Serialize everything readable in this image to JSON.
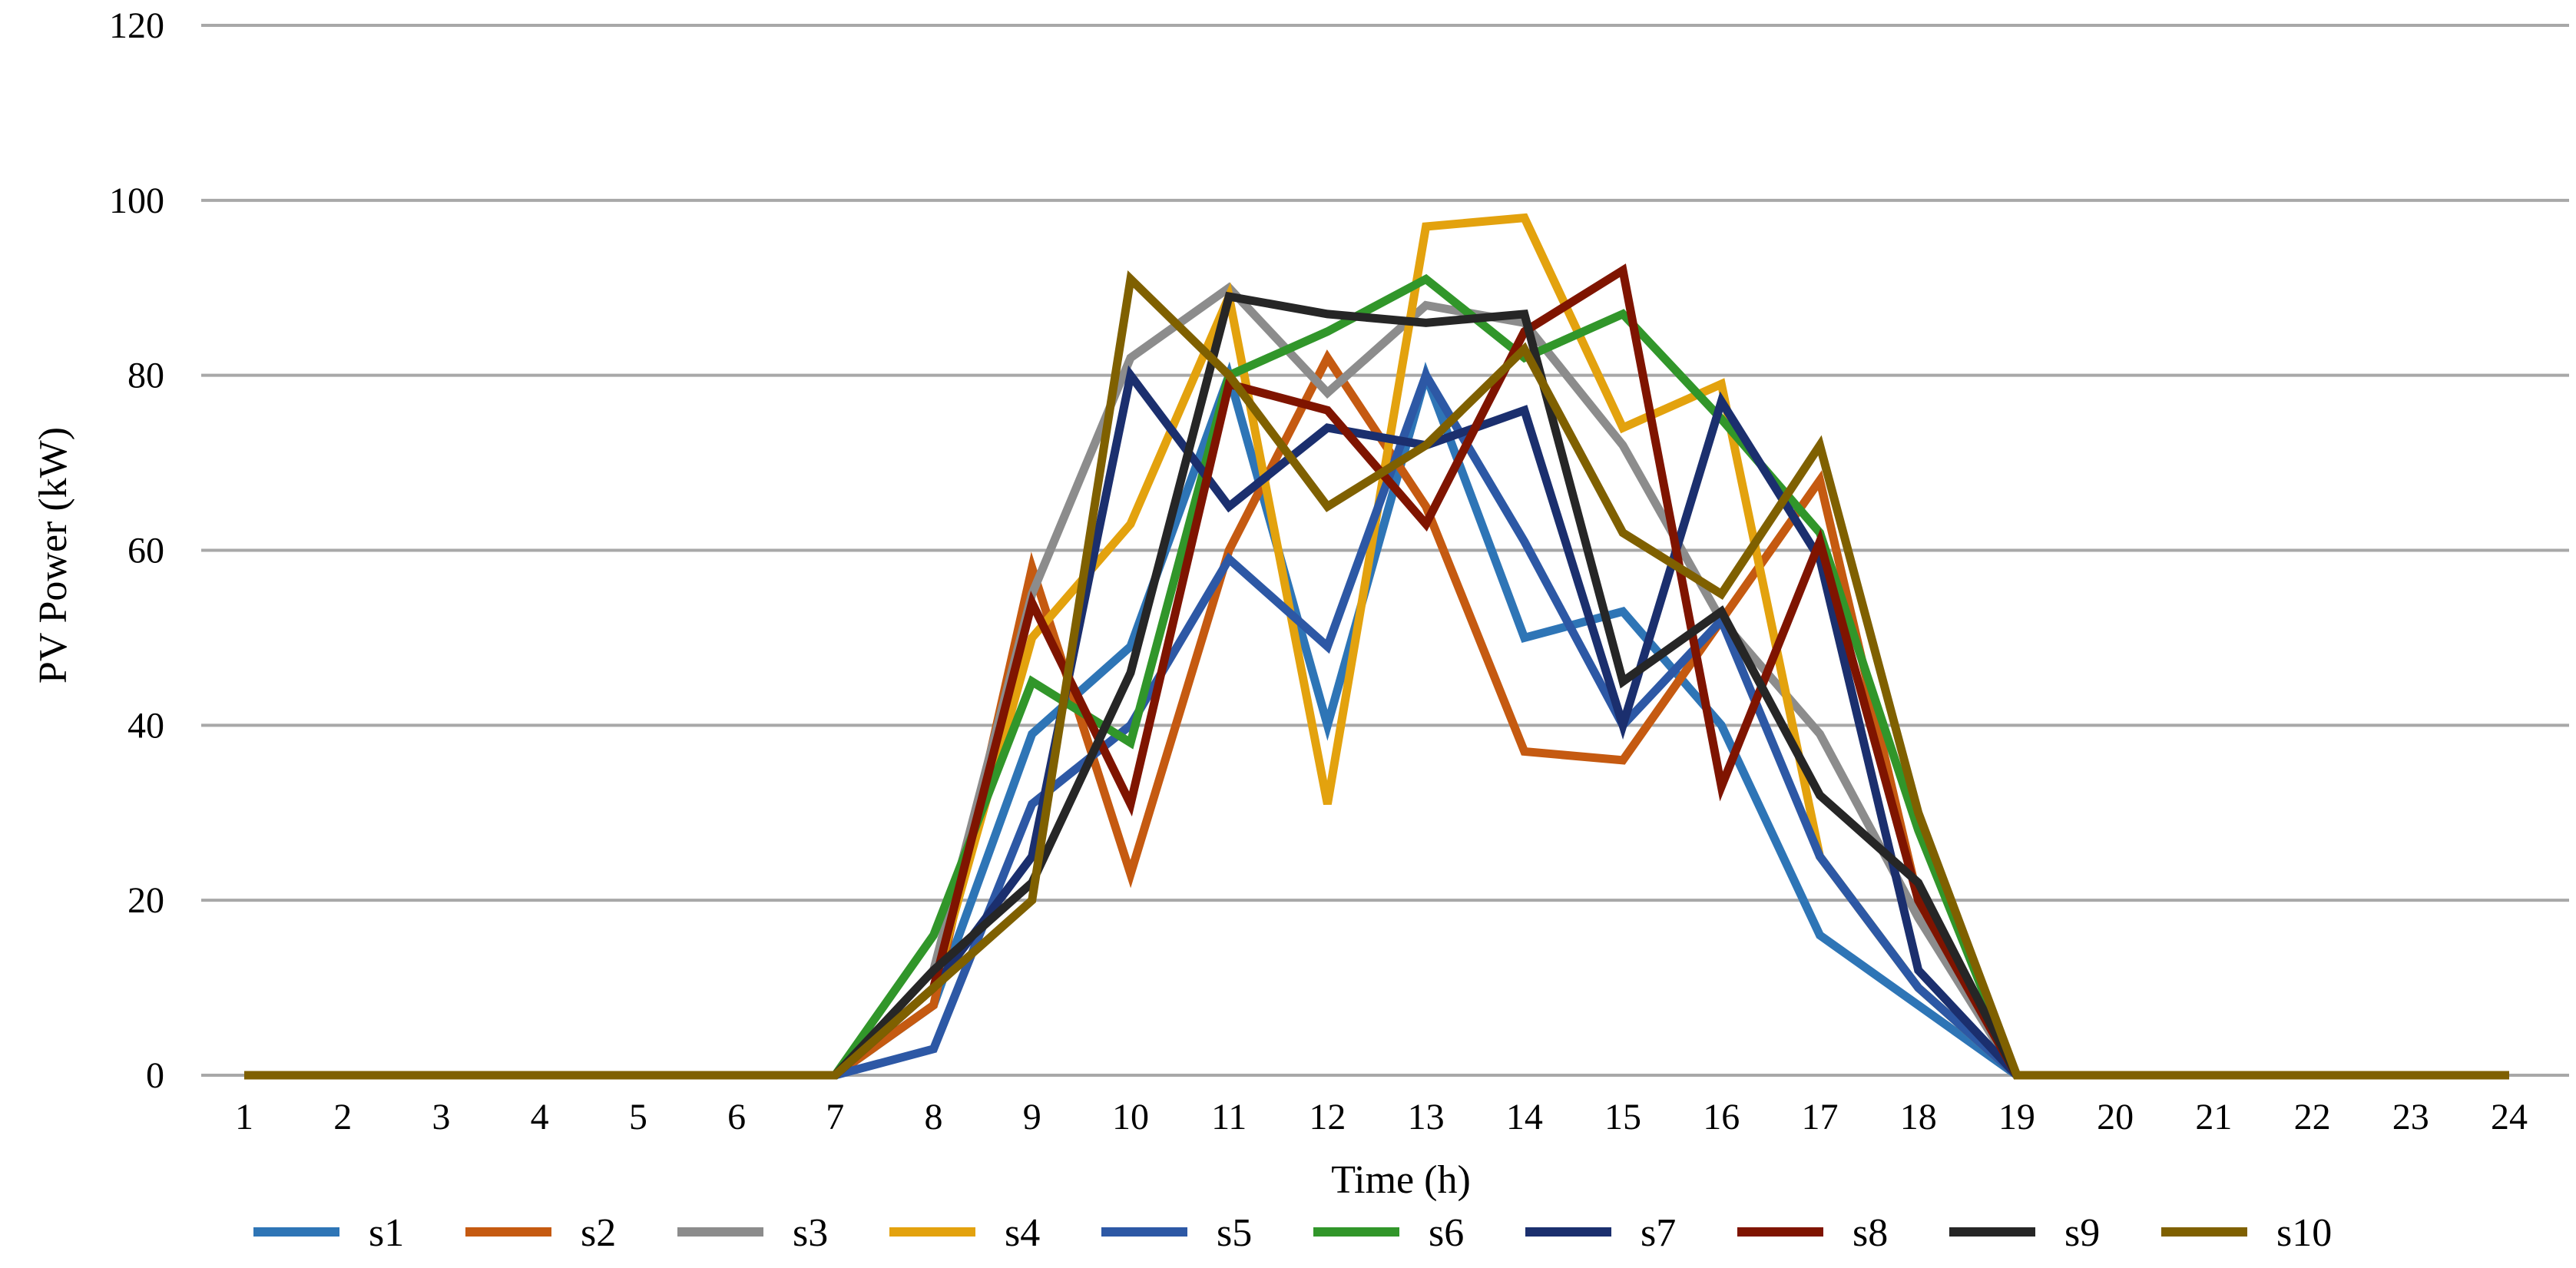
{
  "chart_data": {
    "type": "line",
    "title": "",
    "xlabel": "Time (h)",
    "ylabel": "PV Power (kW)",
    "categories": [
      "1",
      "2",
      "3",
      "4",
      "5",
      "6",
      "7",
      "8",
      "9",
      "10",
      "11",
      "12",
      "13",
      "14",
      "15",
      "16",
      "17",
      "18",
      "19",
      "20",
      "21",
      "22",
      "23",
      "24"
    ],
    "ylim": [
      0,
      120
    ],
    "yticks": [
      0,
      20,
      40,
      60,
      80,
      100,
      120
    ],
    "grid": true,
    "legend": "bottom",
    "series": [
      {
        "name": "s1",
        "color": "#2e75b6",
        "values": [
          0,
          0,
          0,
          0,
          0,
          0,
          0,
          8,
          39,
          49,
          80,
          40,
          80,
          50,
          53,
          40,
          16,
          8,
          0,
          0,
          0,
          0,
          0,
          0
        ]
      },
      {
        "name": "s2",
        "color": "#c55a11",
        "values": [
          0,
          0,
          0,
          0,
          0,
          0,
          0,
          8,
          58,
          23,
          60,
          82,
          65,
          37,
          36,
          52,
          68,
          20,
          0,
          0,
          0,
          0,
          0,
          0
        ]
      },
      {
        "name": "s3",
        "color": "#8c8c8c",
        "values": [
          0,
          0,
          0,
          0,
          0,
          0,
          0,
          12,
          55,
          82,
          90,
          78,
          88,
          86,
          72,
          52,
          39,
          18,
          0,
          0,
          0,
          0,
          0,
          0
        ]
      },
      {
        "name": "s4",
        "color": "#e3a20e",
        "values": [
          0,
          0,
          0,
          0,
          0,
          0,
          0,
          10,
          50,
          63,
          89,
          31,
          97,
          98,
          74,
          79,
          25,
          10,
          0,
          0,
          0,
          0,
          0,
          0
        ]
      },
      {
        "name": "s5",
        "color": "#2d58a5",
        "values": [
          0,
          0,
          0,
          0,
          0,
          0,
          0,
          3,
          31,
          40,
          59,
          49,
          80,
          61,
          40,
          52,
          25,
          10,
          0,
          0,
          0,
          0,
          0,
          0
        ]
      },
      {
        "name": "s6",
        "color": "#31962a",
        "values": [
          0,
          0,
          0,
          0,
          0,
          0,
          0,
          16,
          45,
          38,
          80,
          85,
          91,
          82,
          87,
          75,
          62,
          28,
          0,
          0,
          0,
          0,
          0,
          0
        ]
      },
      {
        "name": "s7",
        "color": "#1b2f6e",
        "values": [
          0,
          0,
          0,
          0,
          0,
          0,
          0,
          10,
          25,
          80,
          65,
          74,
          72,
          76,
          40,
          77,
          59,
          12,
          0,
          0,
          0,
          0,
          0,
          0
        ]
      },
      {
        "name": "s8",
        "color": "#7f1400",
        "values": [
          0,
          0,
          0,
          0,
          0,
          0,
          0,
          10,
          54,
          31,
          79,
          76,
          63,
          85,
          92,
          33,
          61,
          20,
          0,
          0,
          0,
          0,
          0,
          0
        ]
      },
      {
        "name": "s9",
        "color": "#262626",
        "values": [
          0,
          0,
          0,
          0,
          0,
          0,
          0,
          12,
          22,
          46,
          89,
          87,
          86,
          87,
          45,
          53,
          32,
          22,
          0,
          0,
          0,
          0,
          0,
          0
        ]
      },
      {
        "name": "s10",
        "color": "#7f6000",
        "values": [
          0,
          0,
          0,
          0,
          0,
          0,
          0,
          10,
          20,
          91,
          80,
          65,
          72,
          83,
          62,
          55,
          72,
          30,
          0,
          0,
          0,
          0,
          0,
          0
        ]
      }
    ]
  }
}
